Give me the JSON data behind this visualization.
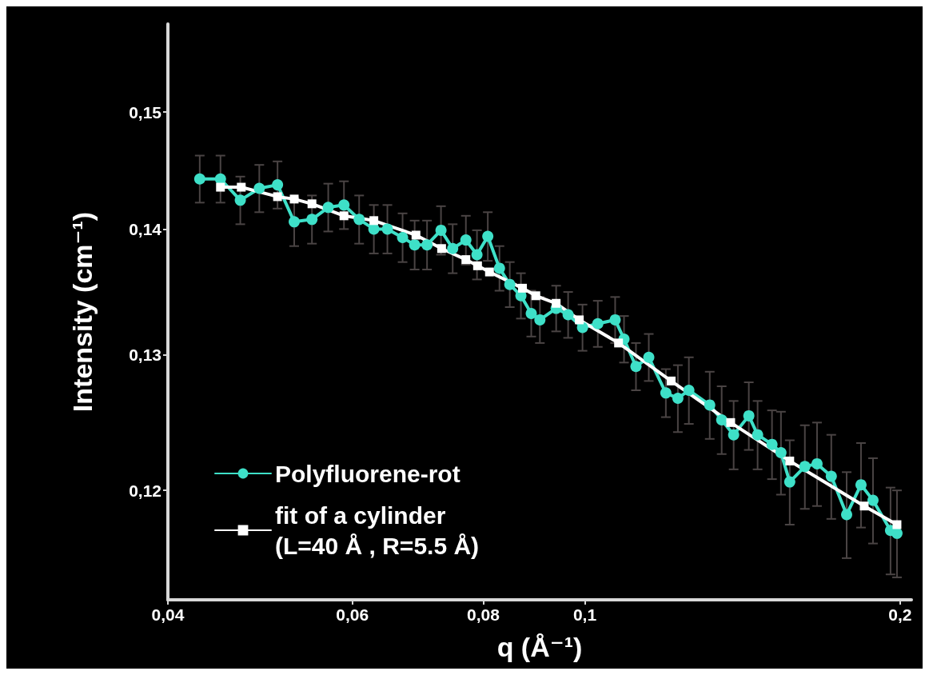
{
  "chart_data": {
    "type": "line",
    "xlabel": "q (Å⁻¹)",
    "ylabel": "Intensity (cm⁻¹)",
    "log": "xy",
    "grid": false,
    "legend": "bottom left",
    "xlim": [
      0.04,
      0.205
    ],
    "ylim": [
      0.1125,
      0.158
    ],
    "xticks": [
      {
        "value": 0.04,
        "label": "0,04"
      },
      {
        "value": 0.06,
        "label": "0,06"
      },
      {
        "value": 0.08,
        "label": "0,08"
      },
      {
        "value": 0.1,
        "label": "0,1"
      },
      {
        "value": 0.2,
        "label": "0,2"
      }
    ],
    "yticks": [
      {
        "value": 0.12,
        "label": "0,12"
      },
      {
        "value": 0.13,
        "label": "0,13"
      },
      {
        "value": 0.14,
        "label": "0,14"
      },
      {
        "value": 0.15,
        "label": "0,15"
      }
    ],
    "series": [
      {
        "name": "Polyfluorene-rot",
        "color": "#3ee0c8",
        "marker": "circle",
        "x": [
          0.0429,
          0.0449,
          0.0469,
          0.0489,
          0.0509,
          0.0528,
          0.0549,
          0.0569,
          0.0589,
          0.0609,
          0.0629,
          0.0648,
          0.067,
          0.0688,
          0.0707,
          0.0729,
          0.0748,
          0.077,
          0.0789,
          0.0808,
          0.0829,
          0.0848,
          0.0869,
          0.0889,
          0.0906,
          0.0939,
          0.0964,
          0.0995,
          0.1029,
          0.1069,
          0.109,
          0.1119,
          0.1151,
          0.1195,
          0.1227,
          0.1257,
          0.1316,
          0.1351,
          0.1387,
          0.1434,
          0.1462,
          0.1509,
          0.1539,
          0.1569,
          0.1622,
          0.1666,
          0.1719,
          0.1778,
          0.1835,
          0.1884,
          0.1958,
          0.1986
        ],
        "values": [
          0.1442,
          0.1442,
          0.1424,
          0.1434,
          0.1437,
          0.1406,
          0.1408,
          0.1418,
          0.142,
          0.1408,
          0.14,
          0.14,
          0.1393,
          0.1387,
          0.1387,
          0.1399,
          0.1384,
          0.1391,
          0.1379,
          0.1394,
          0.1368,
          0.1355,
          0.1346,
          0.1332,
          0.1327,
          0.1336,
          0.1331,
          0.1321,
          0.1324,
          0.1327,
          0.1312,
          0.1291,
          0.1298,
          0.1271,
          0.1267,
          0.1273,
          0.1262,
          0.1251,
          0.124,
          0.1254,
          0.124,
          0.1233,
          0.1227,
          0.1206,
          0.1217,
          0.1219,
          0.121,
          0.1183,
          0.1204,
          0.1193,
          0.1172,
          0.117
        ],
        "errors": [
          0.002,
          0.002,
          0.002,
          0.002,
          0.002,
          0.002,
          0.002,
          0.002,
          0.002,
          0.002,
          0.002,
          0.002,
          0.002,
          0.002,
          0.002,
          0.002,
          0.002,
          0.002,
          0.002,
          0.002,
          0.0018,
          0.0018,
          0.0018,
          0.0018,
          0.0018,
          0.0018,
          0.0018,
          0.0018,
          0.0018,
          0.0018,
          0.0018,
          0.0018,
          0.0018,
          0.0018,
          0.0025,
          0.0025,
          0.0025,
          0.0025,
          0.0025,
          0.0025,
          0.0025,
          0.0025,
          0.003,
          0.003,
          0.003,
          0.003,
          0.003,
          0.003,
          0.003,
          0.003,
          0.003,
          0.003
        ]
      },
      {
        "name": "fit of a cylinder\n(L=40 Å , R=5.5 Å)",
        "color": "#ffffff",
        "marker": "square",
        "x": [
          0.0449,
          0.047,
          0.0509,
          0.0528,
          0.0549,
          0.0589,
          0.0629,
          0.069,
          0.073,
          0.077,
          0.079,
          0.0811,
          0.0872,
          0.0898,
          0.0939,
          0.0988,
          0.1077,
          0.1209,
          0.1378,
          0.1569,
          0.1848,
          0.1986
        ],
        "values": [
          0.1435,
          0.1435,
          0.1427,
          0.1425,
          0.1421,
          0.1411,
          0.1407,
          0.1395,
          0.1384,
          0.1375,
          0.137,
          0.1365,
          0.1352,
          0.1346,
          0.134,
          0.1327,
          0.1309,
          0.128,
          0.1249,
          0.1221,
          0.1189,
          0.1176
        ]
      }
    ]
  }
}
